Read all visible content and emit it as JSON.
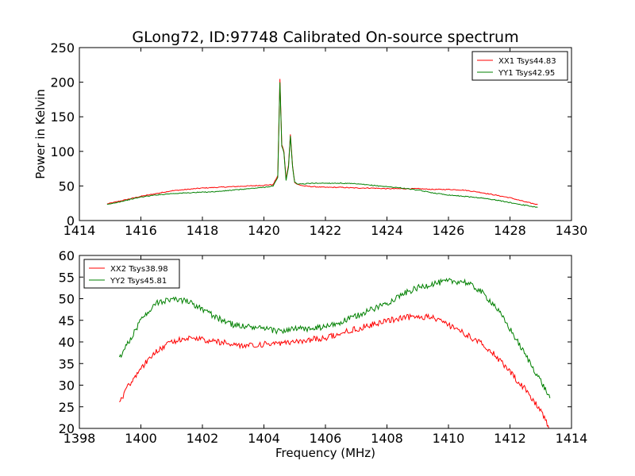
{
  "chart_data": [
    {
      "type": "line",
      "title": "GLong72, ID:97748 Calibrated On-source spectrum",
      "xlabel": "",
      "ylabel": "Power in Kelvin",
      "xlim": [
        1414,
        1430
      ],
      "ylim": [
        0,
        250
      ],
      "xticks": [
        "1414",
        "1416",
        "1418",
        "1420",
        "1422",
        "1424",
        "1426",
        "1428",
        "1430"
      ],
      "yticks": [
        "0",
        "50",
        "100",
        "150",
        "200",
        "250"
      ],
      "grid": false,
      "legend_position": "top-right",
      "series": [
        {
          "name": "XX1 Tsys44.83",
          "color": "#ff0000",
          "x": [
            1414.9,
            1415.5,
            1416.0,
            1416.5,
            1417.0,
            1417.5,
            1418.0,
            1418.5,
            1419.0,
            1419.5,
            1420.0,
            1420.3,
            1420.45,
            1420.52,
            1420.58,
            1420.65,
            1420.72,
            1420.8,
            1420.86,
            1420.93,
            1421.0,
            1421.1,
            1421.3,
            1421.6,
            1422.0,
            1422.5,
            1423.0,
            1423.5,
            1424.0,
            1424.5,
            1425.0,
            1425.5,
            1426.0,
            1426.5,
            1427.0,
            1427.5,
            1428.0,
            1428.5,
            1428.9
          ],
          "y": [
            24,
            30,
            35,
            39,
            43,
            45,
            47,
            48,
            49,
            50,
            51,
            52,
            65,
            205,
            110,
            100,
            60,
            80,
            125,
            80,
            55,
            52,
            50,
            49,
            48,
            48,
            47,
            47,
            46,
            46,
            46,
            45,
            45,
            44,
            41,
            37,
            33,
            27,
            23
          ]
        },
        {
          "name": "YY1 Tsys42.95",
          "color": "#008000",
          "x": [
            1414.9,
            1415.5,
            1416.0,
            1416.5,
            1417.0,
            1417.5,
            1418.0,
            1418.5,
            1419.0,
            1419.5,
            1420.0,
            1420.3,
            1420.45,
            1420.52,
            1420.58,
            1420.65,
            1420.72,
            1420.8,
            1420.86,
            1420.93,
            1421.0,
            1421.1,
            1421.3,
            1421.6,
            1422.0,
            1422.5,
            1423.0,
            1423.5,
            1424.0,
            1424.5,
            1425.0,
            1425.5,
            1426.0,
            1426.5,
            1427.0,
            1427.5,
            1428.0,
            1428.5,
            1428.9
          ],
          "y": [
            23,
            29,
            34,
            37,
            39,
            40,
            41,
            42,
            44,
            46,
            48,
            50,
            62,
            200,
            108,
            98,
            58,
            78,
            123,
            78,
            55,
            53,
            53,
            54,
            54,
            54,
            53,
            51,
            49,
            47,
            44,
            40,
            37,
            35,
            33,
            30,
            26,
            22,
            19
          ]
        }
      ]
    },
    {
      "type": "line",
      "title": "",
      "xlabel": "Frequency (MHz)",
      "ylabel": "",
      "xlim": [
        1398,
        1414
      ],
      "ylim": [
        20,
        60
      ],
      "xticks": [
        "1398",
        "1400",
        "1402",
        "1404",
        "1406",
        "1408",
        "1410",
        "1412",
        "1414"
      ],
      "yticks": [
        "20",
        "25",
        "30",
        "35",
        "40",
        "45",
        "50",
        "55",
        "60"
      ],
      "grid": false,
      "legend_position": "top-left",
      "series": [
        {
          "name": "XX2 Tsys38.98",
          "color": "#ff0000",
          "x": [
            1399.3,
            1399.6,
            1400.0,
            1400.5,
            1401.0,
            1401.5,
            1402.0,
            1402.5,
            1403.0,
            1403.5,
            1404.0,
            1404.5,
            1405.0,
            1405.5,
            1406.0,
            1406.5,
            1407.0,
            1407.5,
            1408.0,
            1408.5,
            1409.0,
            1409.5,
            1410.0,
            1410.5,
            1411.0,
            1411.5,
            1412.0,
            1412.5,
            1413.0,
            1413.3
          ],
          "y": [
            26,
            30,
            34,
            38,
            40,
            41,
            40.5,
            40,
            39.5,
            39,
            39.5,
            39.5,
            40,
            40.5,
            41,
            42,
            43,
            44,
            45,
            45.5,
            46,
            45.5,
            44,
            42,
            40,
            37,
            33,
            29,
            24,
            20
          ]
        },
        {
          "name": "YY2 Tsys45.81",
          "color": "#008000",
          "x": [
            1399.3,
            1399.6,
            1400.0,
            1400.5,
            1401.0,
            1401.5,
            1402.0,
            1402.5,
            1403.0,
            1403.5,
            1404.0,
            1404.5,
            1405.0,
            1405.5,
            1406.0,
            1406.5,
            1407.0,
            1407.5,
            1408.0,
            1408.5,
            1409.0,
            1409.5,
            1410.0,
            1410.5,
            1411.0,
            1411.5,
            1412.0,
            1412.5,
            1413.0,
            1413.3
          ],
          "y": [
            36,
            40,
            45,
            49,
            50,
            49.5,
            47.5,
            45.5,
            44,
            43.5,
            43,
            42.5,
            43,
            43,
            43.5,
            44.5,
            46,
            47.5,
            49,
            51,
            52.5,
            53.5,
            54,
            54,
            52,
            48.5,
            43,
            37,
            31,
            27
          ]
        }
      ]
    }
  ]
}
